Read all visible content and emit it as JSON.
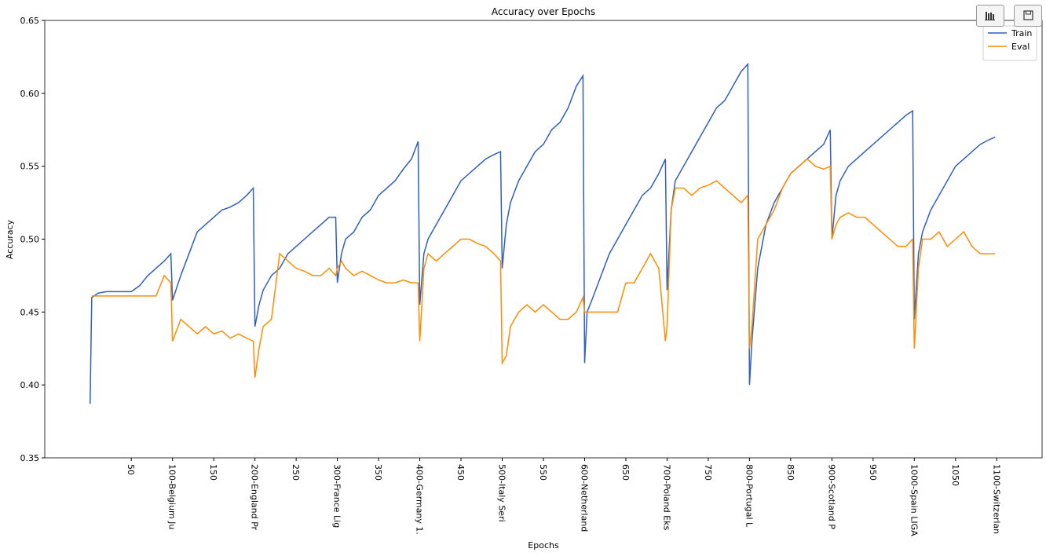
{
  "chart_data": {
    "type": "line",
    "title": "Accuracy over Epochs",
    "x_label": "Epochs",
    "y_label": "Accuracy",
    "x": [
      0,
      2,
      10,
      20,
      30,
      40,
      50,
      60,
      70,
      80,
      90,
      98,
      100,
      110,
      120,
      130,
      140,
      150,
      160,
      170,
      180,
      190,
      198,
      200,
      205,
      210,
      220,
      230,
      240,
      250,
      260,
      270,
      280,
      290,
      298,
      300,
      305,
      310,
      320,
      330,
      340,
      350,
      360,
      370,
      380,
      390,
      398,
      400,
      405,
      410,
      420,
      430,
      440,
      450,
      460,
      470,
      480,
      490,
      498,
      500,
      505,
      510,
      520,
      530,
      540,
      550,
      560,
      570,
      580,
      590,
      598,
      600,
      603,
      610,
      620,
      630,
      640,
      650,
      660,
      670,
      680,
      690,
      698,
      700,
      705,
      710,
      720,
      730,
      740,
      750,
      760,
      770,
      780,
      790,
      798,
      800,
      803,
      810,
      820,
      830,
      840,
      850,
      860,
      870,
      880,
      890,
      898,
      900,
      905,
      910,
      920,
      930,
      940,
      950,
      960,
      970,
      980,
      990,
      998,
      1000,
      1005,
      1010,
      1020,
      1030,
      1040,
      1050,
      1060,
      1070,
      1080,
      1090,
      1098
    ],
    "series": [
      {
        "name": "Train",
        "color": "#2f5fbf",
        "values": [
          0.387,
          0.46,
          0.463,
          0.464,
          0.464,
          0.464,
          0.464,
          0.468,
          0.475,
          0.48,
          0.485,
          0.49,
          0.458,
          0.475,
          0.49,
          0.505,
          0.51,
          0.515,
          0.52,
          0.522,
          0.525,
          0.53,
          0.535,
          0.44,
          0.455,
          0.465,
          0.475,
          0.48,
          0.49,
          0.495,
          0.5,
          0.505,
          0.51,
          0.515,
          0.515,
          0.47,
          0.49,
          0.5,
          0.505,
          0.515,
          0.52,
          0.53,
          0.535,
          0.54,
          0.548,
          0.555,
          0.567,
          0.455,
          0.49,
          0.5,
          0.51,
          0.52,
          0.53,
          0.54,
          0.545,
          0.55,
          0.555,
          0.558,
          0.56,
          0.48,
          0.51,
          0.525,
          0.54,
          0.55,
          0.56,
          0.565,
          0.575,
          0.58,
          0.59,
          0.605,
          0.612,
          0.415,
          0.45,
          0.46,
          0.475,
          0.49,
          0.5,
          0.51,
          0.52,
          0.53,
          0.535,
          0.545,
          0.555,
          0.465,
          0.52,
          0.54,
          0.55,
          0.56,
          0.57,
          0.58,
          0.59,
          0.595,
          0.605,
          0.615,
          0.62,
          0.4,
          0.43,
          0.48,
          0.51,
          0.525,
          0.535,
          0.545,
          0.55,
          0.555,
          0.56,
          0.565,
          0.575,
          0.5,
          0.53,
          0.54,
          0.55,
          0.555,
          0.56,
          0.565,
          0.57,
          0.575,
          0.58,
          0.585,
          0.588,
          0.445,
          0.49,
          0.505,
          0.52,
          0.53,
          0.54,
          0.55,
          0.555,
          0.56,
          0.565,
          0.568,
          0.57
        ]
      },
      {
        "name": "Eval",
        "color": "#ff8c00",
        "values": [
          null,
          0.461,
          0.461,
          0.461,
          0.461,
          0.461,
          0.461,
          0.461,
          0.461,
          0.461,
          0.475,
          0.47,
          0.43,
          0.445,
          0.44,
          0.435,
          0.44,
          0.435,
          0.437,
          0.432,
          0.435,
          0.432,
          0.43,
          0.405,
          0.425,
          0.44,
          0.445,
          0.49,
          0.485,
          0.48,
          0.478,
          0.475,
          0.475,
          0.48,
          0.475,
          0.48,
          0.485,
          0.48,
          0.475,
          0.478,
          0.475,
          0.472,
          0.47,
          0.47,
          0.472,
          0.47,
          0.47,
          0.43,
          0.48,
          0.49,
          0.485,
          0.49,
          0.495,
          0.5,
          0.5,
          0.497,
          0.495,
          0.49,
          0.485,
          0.415,
          0.42,
          0.44,
          0.45,
          0.455,
          0.45,
          0.455,
          0.45,
          0.445,
          0.445,
          0.45,
          0.46,
          0.45,
          0.45,
          0.45,
          0.45,
          0.45,
          0.45,
          0.47,
          0.47,
          0.48,
          0.49,
          0.48,
          0.43,
          0.44,
          0.52,
          0.535,
          0.535,
          0.53,
          0.535,
          0.537,
          0.54,
          0.535,
          0.53,
          0.525,
          0.53,
          0.425,
          0.44,
          0.5,
          0.51,
          0.52,
          0.535,
          0.545,
          0.55,
          0.555,
          0.55,
          0.548,
          0.55,
          0.5,
          0.51,
          0.515,
          0.518,
          0.515,
          0.515,
          0.51,
          0.505,
          0.5,
          0.495,
          0.495,
          0.5,
          0.425,
          0.48,
          0.5,
          0.5,
          0.505,
          0.495,
          0.5,
          0.505,
          0.495,
          0.49,
          0.49,
          0.49
        ]
      }
    ],
    "xlim": [
      -55,
      1155
    ],
    "ylim": [
      0.35,
      0.65
    ],
    "xticks": [
      50,
      {
        "value": 100,
        "label": "100-Belgium Ju"
      },
      150,
      {
        "value": 200,
        "label": "200-England Pr"
      },
      250,
      {
        "value": 300,
        "label": "300-France Lig"
      },
      350,
      {
        "value": 400,
        "label": "400-Germany 1."
      },
      450,
      {
        "value": 500,
        "label": "500-Italy Seri"
      },
      550,
      {
        "value": 600,
        "label": "600-Netherland"
      },
      650,
      {
        "value": 700,
        "label": "700-Poland Eks"
      },
      750,
      {
        "value": 800,
        "label": "800-Portugal L"
      },
      850,
      {
        "value": 900,
        "label": "900-Scotland P"
      },
      950,
      {
        "value": 1000,
        "label": "1000-Spain LIGA"
      },
      1050,
      {
        "value": 1100,
        "label": "1100-Switzerlan"
      }
    ],
    "yticks": [
      0.35,
      {
        "value": 0.4,
        "label": "0.40"
      },
      0.45,
      {
        "value": 0.5,
        "label": "0.50"
      },
      0.55,
      {
        "value": 0.6,
        "label": "0.60"
      },
      0.65
    ],
    "legend": "upper right",
    "grid": false
  }
}
